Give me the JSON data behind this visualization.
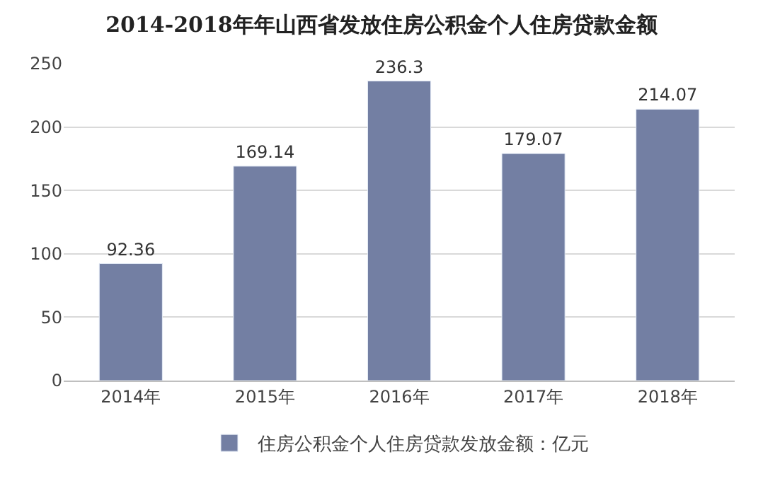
{
  "chart_data": {
    "type": "bar",
    "title": "2014-2018年年山西省发放住房公积金个人住房贷款金额",
    "categories": [
      "2014年",
      "2015年",
      "2016年",
      "2017年",
      "2018年"
    ],
    "series": [
      {
        "name": "住房公积金个人住房贷款发放金额：亿元",
        "color": "#737fa3",
        "values": [
          92.36,
          169.14,
          236.3,
          179.07,
          214.07
        ]
      }
    ],
    "value_labels": [
      "92.36",
      "169.14",
      "236.3",
      "179.07",
      "214.07"
    ],
    "ylim": [
      0,
      250
    ],
    "yticks": [
      0,
      50,
      100,
      150,
      200,
      250
    ],
    "grid": "y",
    "legend": "bottom"
  }
}
